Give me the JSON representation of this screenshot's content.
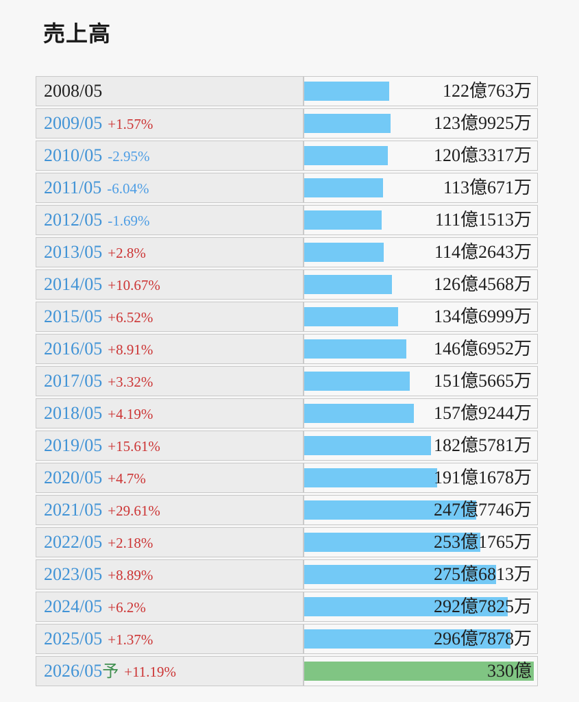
{
  "page": {
    "title": "売上高",
    "background": "#f7f7f7"
  },
  "colors": {
    "bar_blue": "#73c9f6",
    "bar_green": "#80c583",
    "year_blue": "#4193d6",
    "pct_up_red": "#cc3434",
    "pct_down_blue": "#4d9de4",
    "forecast_green": "#3f8f4f",
    "value_text": "#1f1f1f",
    "cell_left_bg": "#ececec",
    "cell_right_bg": "#f8f8f8",
    "border": "#c9c9c9"
  },
  "chart_data": {
    "type": "bar",
    "orientation": "horizontal",
    "title": "売上高",
    "unit": "億円",
    "x_max_oku": 335,
    "legend": "none",
    "rows": [
      {
        "year": "2008/05",
        "forecast_mark": "",
        "pct": "",
        "pct_dir": "none",
        "year_plain": true,
        "value_label": "122億763万",
        "value_oku": 122.0763,
        "bar": "blue"
      },
      {
        "year": "2009/05",
        "forecast_mark": "",
        "pct": "+1.57%",
        "pct_dir": "up",
        "year_plain": false,
        "value_label": "123億9925万",
        "value_oku": 123.9925,
        "bar": "blue"
      },
      {
        "year": "2010/05",
        "forecast_mark": "",
        "pct": "-2.95%",
        "pct_dir": "down",
        "year_plain": false,
        "value_label": "120億3317万",
        "value_oku": 120.3317,
        "bar": "blue"
      },
      {
        "year": "2011/05",
        "forecast_mark": "",
        "pct": "-6.04%",
        "pct_dir": "down",
        "year_plain": false,
        "value_label": "113億671万",
        "value_oku": 113.0671,
        "bar": "blue"
      },
      {
        "year": "2012/05",
        "forecast_mark": "",
        "pct": "-1.69%",
        "pct_dir": "down",
        "year_plain": false,
        "value_label": "111億1513万",
        "value_oku": 111.1513,
        "bar": "blue"
      },
      {
        "year": "2013/05",
        "forecast_mark": "",
        "pct": "+2.8%",
        "pct_dir": "up",
        "year_plain": false,
        "value_label": "114億2643万",
        "value_oku": 114.2643,
        "bar": "blue"
      },
      {
        "year": "2014/05",
        "forecast_mark": "",
        "pct": "+10.67%",
        "pct_dir": "up",
        "year_plain": false,
        "value_label": "126億4568万",
        "value_oku": 126.4568,
        "bar": "blue"
      },
      {
        "year": "2015/05",
        "forecast_mark": "",
        "pct": "+6.52%",
        "pct_dir": "up",
        "year_plain": false,
        "value_label": "134億6999万",
        "value_oku": 134.6999,
        "bar": "blue"
      },
      {
        "year": "2016/05",
        "forecast_mark": "",
        "pct": "+8.91%",
        "pct_dir": "up",
        "year_plain": false,
        "value_label": "146億6952万",
        "value_oku": 146.6952,
        "bar": "blue"
      },
      {
        "year": "2017/05",
        "forecast_mark": "",
        "pct": "+3.32%",
        "pct_dir": "up",
        "year_plain": false,
        "value_label": "151億5665万",
        "value_oku": 151.5665,
        "bar": "blue"
      },
      {
        "year": "2018/05",
        "forecast_mark": "",
        "pct": "+4.19%",
        "pct_dir": "up",
        "year_plain": false,
        "value_label": "157億9244万",
        "value_oku": 157.9244,
        "bar": "blue"
      },
      {
        "year": "2019/05",
        "forecast_mark": "",
        "pct": "+15.61%",
        "pct_dir": "up",
        "year_plain": false,
        "value_label": "182億5781万",
        "value_oku": 182.5781,
        "bar": "blue"
      },
      {
        "year": "2020/05",
        "forecast_mark": "",
        "pct": "+4.7%",
        "pct_dir": "up",
        "year_plain": false,
        "value_label": "191億1678万",
        "value_oku": 191.1678,
        "bar": "blue"
      },
      {
        "year": "2021/05",
        "forecast_mark": "",
        "pct": "+29.61%",
        "pct_dir": "up",
        "year_plain": false,
        "value_label": "247億7746万",
        "value_oku": 247.7746,
        "bar": "blue"
      },
      {
        "year": "2022/05",
        "forecast_mark": "",
        "pct": "+2.18%",
        "pct_dir": "up",
        "year_plain": false,
        "value_label": "253億1765万",
        "value_oku": 253.1765,
        "bar": "blue"
      },
      {
        "year": "2023/05",
        "forecast_mark": "",
        "pct": "+8.89%",
        "pct_dir": "up",
        "year_plain": false,
        "value_label": "275億6813万",
        "value_oku": 275.6813,
        "bar": "blue"
      },
      {
        "year": "2024/05",
        "forecast_mark": "",
        "pct": "+6.2%",
        "pct_dir": "up",
        "year_plain": false,
        "value_label": "292億7825万",
        "value_oku": 292.7825,
        "bar": "blue"
      },
      {
        "year": "2025/05",
        "forecast_mark": "",
        "pct": "+1.37%",
        "pct_dir": "up",
        "year_plain": false,
        "value_label": "296億7878万",
        "value_oku": 296.7878,
        "bar": "blue"
      },
      {
        "year": "2026/05",
        "forecast_mark": "予",
        "pct": "+11.19%",
        "pct_dir": "up",
        "year_plain": false,
        "value_label": "330億",
        "value_oku": 330,
        "bar": "green"
      }
    ]
  }
}
